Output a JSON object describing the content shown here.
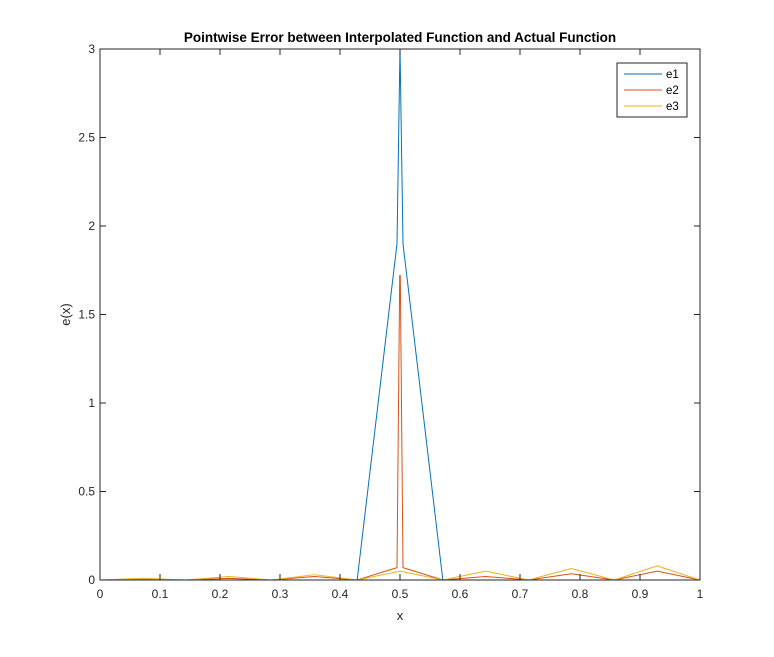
{
  "chart_data": {
    "type": "line",
    "title": "Pointwise Error between Interpolated Function and Actual Function",
    "xlabel": "x",
    "ylabel": "e(x)",
    "xlim": [
      0,
      1
    ],
    "ylim": [
      0,
      3
    ],
    "xticks": [
      "0",
      "0.1",
      "0.2",
      "0.3",
      "0.4",
      "0.5",
      "0.6",
      "0.7",
      "0.8",
      "0.9",
      "1"
    ],
    "yticks": [
      "0",
      "0.5",
      "1",
      "1.5",
      "2",
      "2.5",
      "3"
    ],
    "grid": false,
    "legend_position": "top-right",
    "series": [
      {
        "name": "e1",
        "color": "#0072BD",
        "x": [
          0,
          0.1429,
          0.2857,
          0.4286,
          0.495,
          0.4995,
          0.5,
          0.5005,
          0.505,
          0.5714,
          0.7143,
          0.8571,
          1
        ],
        "y": [
          0,
          0,
          0,
          0,
          1.9,
          2.9,
          3.0,
          2.9,
          1.9,
          0,
          0,
          0,
          0
        ]
      },
      {
        "name": "e2",
        "color": "#D95319",
        "x": [
          0,
          0.0714,
          0.1429,
          0.2143,
          0.2857,
          0.3571,
          0.4286,
          0.495,
          0.4995,
          0.5,
          0.5005,
          0.505,
          0.5714,
          0.6429,
          0.7143,
          0.7857,
          0.8571,
          0.9286,
          1
        ],
        "y": [
          0,
          0.002,
          0,
          0.009,
          0,
          0.02,
          0,
          0.07,
          1.72,
          1.72,
          1.72,
          0.07,
          0,
          0.02,
          0,
          0.035,
          0,
          0.05,
          0
        ]
      },
      {
        "name": "e3",
        "color": "#EDB120",
        "x": [
          0,
          0.0714,
          0.1429,
          0.2143,
          0.2857,
          0.3571,
          0.4286,
          0.5,
          0.5714,
          0.6429,
          0.7143,
          0.7857,
          0.8571,
          0.9286,
          1
        ],
        "y": [
          0,
          0.01,
          0,
          0.02,
          0,
          0.03,
          0,
          0.05,
          0,
          0.05,
          0,
          0.065,
          0,
          0.08,
          0
        ]
      }
    ]
  }
}
